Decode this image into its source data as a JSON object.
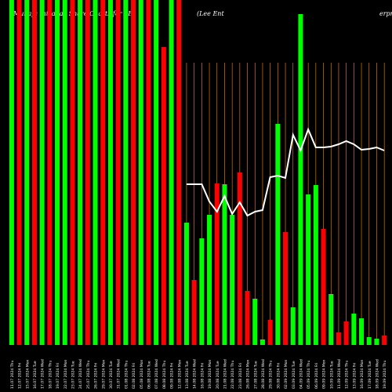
{
  "chart_data": {
    "type": "bar",
    "title_left": "Munafa Intraday Share Charts for LE",
    "title_right": "(Lee Ent",
    "title_right_tail": "erprises",
    "colors": {
      "up": "#00ff00",
      "down": "#ff0000",
      "grid": "#ff8c00",
      "line": "#ffffff",
      "background": "#000000"
    },
    "categories": [
      "11.07 2024 Thu",
      "12.07 2024 Fri",
      "15.07 2024 Mon",
      "16.07 2024 Tue",
      "17.07 2024 Wed",
      "18.07 2024 Thu",
      "19.07 2024 Fri",
      "22.07 2024 Mon",
      "23.07 2024 Tue",
      "24.07 2024 Wed",
      "25.07 2024 Thu",
      "26.07 2024 Fri",
      "29.07 2024 Mon",
      "30.07 2024 Tue",
      "31.07 2024 Wed",
      "01.08 2024 Thu",
      "02.08 2024 Fri",
      "05.08 2024 Mon",
      "06.08 2024 Tue",
      "07.08 2024 Wed",
      "08.08 2024 Thu",
      "09.08 2024 Fri",
      "12.08 2024 Mon",
      "13.08 2024 Tue",
      "14.08 2024 Wed",
      "16.08 2024 Fri",
      "19.08 2024 Mon",
      "20.08 2024 Tue",
      "21.08 2024 Wed",
      "22.08 2024 Thu",
      "23.08 2024 Fri",
      "26.08 2024 Mon",
      "27.08 2024 Tue",
      "28.08 2024 Wed",
      "29.08 2024 Thu",
      "30.08 2024 Fri",
      "02.09 2024 Mon",
      "03.09 2024 Tue",
      "04.09 2024 Wed",
      "05.09 2024 Thu",
      "06.09 2024 Fri",
      "09.09 2024 Mon",
      "10.09 2024 Tue",
      "11.09 2024 Wed",
      "12.09 2024 Thu",
      "13.09 2024 Fri",
      "16.09 2024 Mon",
      "17.09 2024 Tue",
      "18.09 2024 Wed",
      "19.09 2024 Thu"
    ],
    "colorSeq": [
      "up",
      "down",
      "up",
      "down",
      "up",
      "down",
      "up",
      "up",
      "down",
      "up",
      "down",
      "up",
      "down",
      "up",
      "down",
      "up",
      "down",
      "up",
      "down",
      "up",
      "down",
      "up",
      "down",
      "up",
      "down",
      "up",
      "up",
      "down",
      "up",
      "up",
      "down",
      "down",
      "up",
      "up",
      "down",
      "up",
      "down",
      "up",
      "up",
      "up",
      "up",
      "down",
      "up",
      "down",
      "down",
      "up",
      "up",
      "up",
      "up",
      "down"
    ],
    "values": [
      440,
      440,
      440,
      440,
      440,
      440,
      440,
      440,
      440,
      440,
      440,
      440,
      440,
      440,
      440,
      440,
      440,
      440,
      440,
      440,
      380,
      440,
      440,
      156,
      83,
      136,
      166,
      206,
      205,
      166,
      220,
      69,
      59,
      7,
      32,
      282,
      144,
      48,
      422,
      192,
      204,
      148,
      65,
      16,
      30,
      40,
      34,
      10,
      8,
      12
    ],
    "line": [
      null,
      null,
      null,
      null,
      null,
      null,
      null,
      null,
      null,
      null,
      null,
      null,
      null,
      null,
      null,
      null,
      null,
      null,
      null,
      null,
      null,
      null,
      null,
      205,
      205,
      205,
      183,
      170,
      190,
      167,
      182,
      165,
      170,
      172,
      214,
      216,
      213,
      268,
      248,
      275,
      252,
      252,
      253,
      256,
      260,
      256,
      249,
      250,
      252,
      248
    ],
    "ylim": [
      0,
      440
    ],
    "grid": true
  }
}
